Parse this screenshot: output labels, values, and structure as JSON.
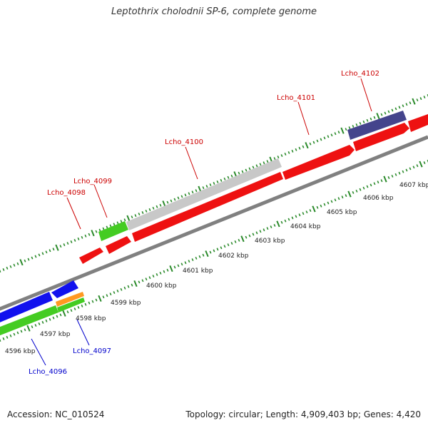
{
  "title": "Leptothrix cholodnii SP-6, complete genome",
  "accession": "Accession: NC_010524",
  "topology": "Topology: circular; Length: 4,909,403 bp; Genes: 4,420",
  "colors": {
    "backbone": "#808080",
    "ticks": "#2a8a2a",
    "red_gene": "#ee1111",
    "grey_gene": "#c8c8c8",
    "green_gene": "#44cc22",
    "blue_gene": "#1111ee",
    "purple_gene": "#44448c",
    "orange_gene": "#ff9922",
    "red_label": "#cc0000",
    "blue_label": "#0000cc"
  },
  "kbp_labels": [
    "4596 kbp",
    "4597 kbp",
    "4598 kbp",
    "4599 kbp",
    "4600 kbp",
    "4601 kbp",
    "4602 kbp",
    "4603 kbp",
    "4604 kbp",
    "4605 kbp",
    "4606 kbp",
    "4607 kbp"
  ],
  "gene_labels": [
    {
      "text": "Lcho_4102",
      "strand": "forward"
    },
    {
      "text": "Lcho_4101",
      "strand": "forward"
    },
    {
      "text": "Lcho_4100",
      "strand": "forward"
    },
    {
      "text": "Lcho_4099",
      "strand": "forward"
    },
    {
      "text": "Lcho_4098",
      "strand": "forward"
    },
    {
      "text": "Lcho_4097",
      "strand": "reverse"
    },
    {
      "text": "Lcho_4096",
      "strand": "reverse"
    }
  ]
}
